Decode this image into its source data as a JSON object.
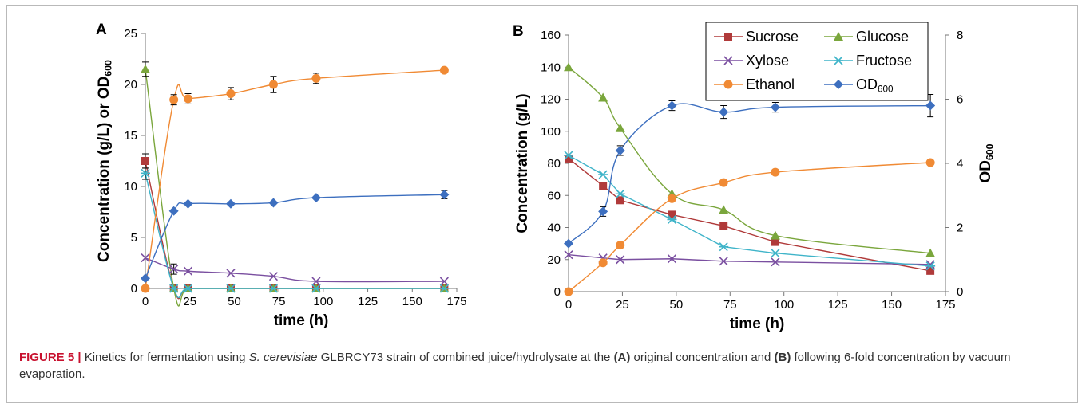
{
  "figure": {
    "caption": {
      "label": "FIGURE 5 |",
      "t1": " Kinetics for fermentation using ",
      "organism": "S. cerevisiae",
      "t2": " GLBRCY73 strain of combined juice/hydrolysate at the ",
      "mark_a": "(A)",
      "t3": " original concentration and ",
      "mark_b": "(B)",
      "t4": " following 6-fold concentration by vacuum evaporation."
    }
  },
  "colors": {
    "sucrose": "#b03a3a",
    "glucose": "#7aa63c",
    "xylose": "#7a4fa0",
    "fructose": "#3fb4c9",
    "ethanol": "#f08a34",
    "od600": "#3d6fbf"
  },
  "chart_data": [
    {
      "type": "scatter",
      "panel": "A",
      "xlabel": "time (h)",
      "ylabel": "Concentration (g/L) or OD600",
      "xlim": [
        0,
        175
      ],
      "ylim": [
        0,
        25
      ],
      "xticks": [
        "0",
        "25",
        "50",
        "75",
        "100",
        "125",
        "150",
        "175"
      ],
      "yticks": [
        "0",
        "5",
        "10",
        "15",
        "20",
        "25"
      ],
      "grid": false,
      "x": [
        0,
        16,
        24,
        48,
        72,
        96,
        168
      ],
      "series": [
        {
          "key": "sucrose",
          "values": [
            12.5,
            0.0,
            0.0,
            0.0,
            0.0,
            0.0,
            0.0
          ],
          "err": [
            0.7,
            0,
            0,
            0,
            0,
            0,
            0
          ]
        },
        {
          "key": "glucose",
          "values": [
            21.5,
            0.0,
            0.0,
            0.0,
            0.0,
            0.0,
            0.0
          ],
          "err": [
            0.7,
            0,
            0,
            0,
            0,
            0,
            0
          ]
        },
        {
          "key": "xylose",
          "values": [
            3.0,
            1.9,
            1.7,
            1.5,
            1.2,
            0.7,
            0.7
          ],
          "err": [
            0,
            0.5,
            0,
            0,
            0,
            0,
            0
          ]
        },
        {
          "key": "fructose",
          "values": [
            11.3,
            0.0,
            0.0,
            0.0,
            0.0,
            0.0,
            0.0
          ],
          "err": [
            0.6,
            0,
            0,
            0,
            0,
            0,
            0
          ]
        },
        {
          "key": "ethanol",
          "values": [
            0.0,
            18.5,
            18.6,
            19.1,
            20.0,
            20.6,
            21.4
          ],
          "err": [
            0,
            0.5,
            0.5,
            0.6,
            0.8,
            0.5,
            0
          ]
        },
        {
          "key": "od600",
          "values": [
            1.0,
            7.6,
            8.3,
            8.3,
            8.4,
            8.9,
            9.2
          ],
          "err": [
            0,
            0,
            0,
            0,
            0,
            0,
            0.4
          ]
        }
      ]
    },
    {
      "type": "scatter",
      "panel": "B",
      "xlabel": "time (h)",
      "ylabel": "Concentration (g/L)",
      "y2label": "OD600",
      "xlim": [
        0,
        175
      ],
      "ylim": [
        0,
        160
      ],
      "y2lim": [
        0,
        8
      ],
      "xticks": [
        "0",
        "25",
        "50",
        "75",
        "100",
        "125",
        "150",
        "175"
      ],
      "yticks": [
        "0",
        "20",
        "40",
        "60",
        "80",
        "100",
        "120",
        "140",
        "160"
      ],
      "y2ticks": [
        "0",
        "2",
        "4",
        "6",
        "8"
      ],
      "grid": false,
      "legend": "top-right",
      "x": [
        0,
        16,
        24,
        48,
        72,
        96,
        168
      ],
      "series": [
        {
          "key": "sucrose",
          "name": "Sucrose",
          "axis": "left",
          "values": [
            83,
            66,
            57,
            48,
            41,
            31,
            13
          ]
        },
        {
          "key": "glucose",
          "name": "Glucose",
          "axis": "left",
          "values": [
            140,
            121,
            102,
            61,
            51,
            35,
            24
          ]
        },
        {
          "key": "xylose",
          "name": "Xylose",
          "axis": "left",
          "values": [
            23,
            21,
            20,
            20.5,
            19,
            18.5,
            17
          ]
        },
        {
          "key": "fructose",
          "name": "Fructose",
          "axis": "left",
          "values": [
            85,
            73,
            61,
            45,
            28,
            24,
            16
          ]
        },
        {
          "key": "ethanol",
          "name": "Ethanol",
          "axis": "left",
          "values": [
            0,
            18,
            29,
            58,
            68,
            74.5,
            80.5
          ]
        },
        {
          "key": "od600",
          "name": "OD600",
          "axis": "right",
          "values": [
            1.5,
            2.5,
            4.4,
            5.8,
            5.6,
            5.75,
            5.8
          ],
          "err": [
            0,
            0.15,
            0.15,
            0.15,
            0.2,
            0.15,
            0.35
          ]
        }
      ]
    }
  ]
}
